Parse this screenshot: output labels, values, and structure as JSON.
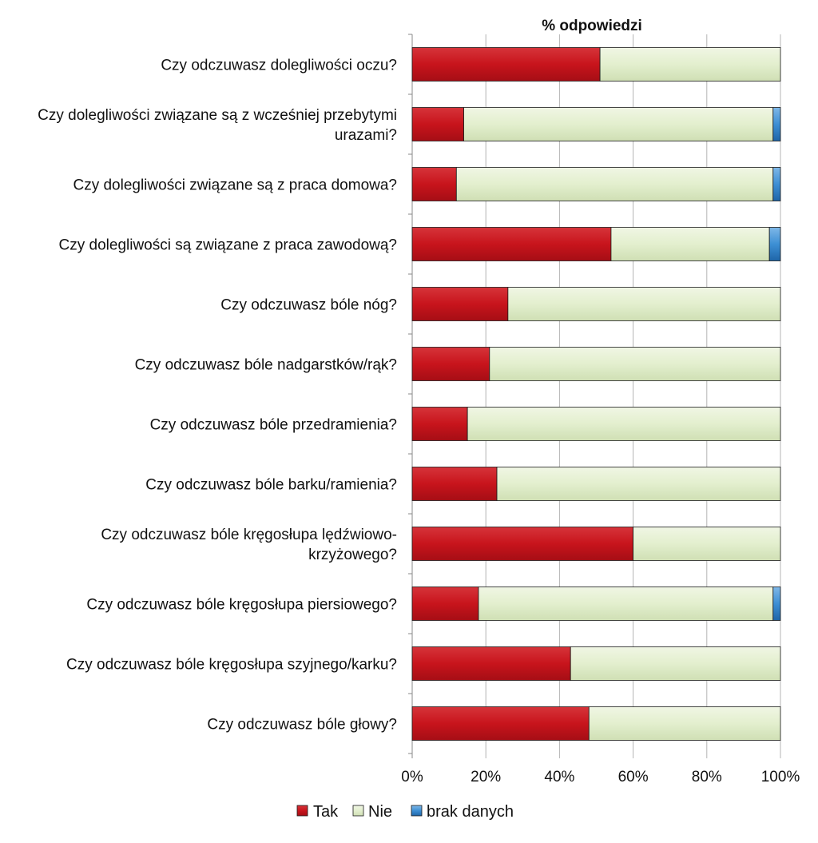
{
  "chart_data": {
    "type": "bar",
    "orientation": "horizontal",
    "stacked": true,
    "percent_stacked": true,
    "title": "% odpowiedzi",
    "categories": [
      [
        "Czy odczuwasz dolegliwości oczu?"
      ],
      [
        "Czy dolegliwości związane są z wcześniej przebytymi",
        "urazami?"
      ],
      [
        "Czy dolegliwości związane są z praca domowa?"
      ],
      [
        "Czy dolegliwości są związane z praca zawodową?"
      ],
      [
        "Czy odczuwasz bóle nóg?"
      ],
      [
        "Czy odczuwasz bóle nadgarstków/rąk?"
      ],
      [
        "Czy odczuwasz bóle przedramienia?"
      ],
      [
        "Czy odczuwasz bóle barku/ramienia?"
      ],
      [
        "Czy odczuwasz bóle kręgosłupa lędźwiowo-",
        "krzyżowego?"
      ],
      [
        "Czy odczuwasz bóle kręgosłupa piersiowego?"
      ],
      [
        "Czy odczuwasz bóle kręgosłupa szyjnego/karku?"
      ],
      [
        "Czy odczuwasz bóle głowy?"
      ]
    ],
    "series": [
      {
        "name": "Tak",
        "color": "#c8141c",
        "values": [
          51,
          14,
          12,
          54,
          26,
          21,
          15,
          23,
          60,
          18,
          43,
          48
        ]
      },
      {
        "name": "Nie",
        "color": "#e3efce",
        "values": [
          49,
          84,
          86,
          43,
          74,
          79,
          85,
          77,
          40,
          80,
          57,
          52
        ]
      },
      {
        "name": "brak danych",
        "color": "#3d8fd4",
        "values": [
          0,
          2,
          2,
          3,
          0,
          0,
          0,
          0,
          0,
          2,
          0,
          0
        ]
      }
    ],
    "xlim": [
      0,
      100
    ],
    "xticks": [
      "0%",
      "20%",
      "40%",
      "60%",
      "80%",
      "100%"
    ],
    "grid": true,
    "legend_position": "bottom"
  }
}
